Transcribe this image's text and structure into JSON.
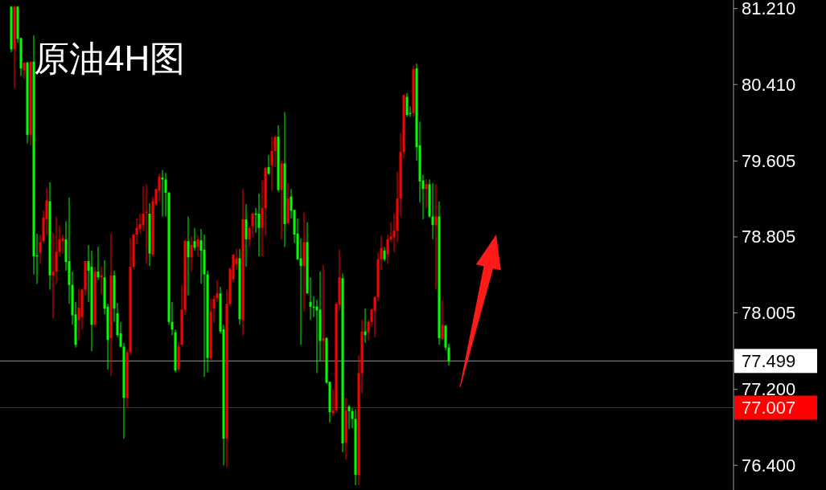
{
  "chart_data": {
    "type": "candlestick",
    "title": "原油4H图",
    "tick_labels": "y",
    "categories": [
      null,
      null,
      null,
      null,
      null,
      null,
      null,
      null,
      null,
      null,
      null,
      null,
      null,
      null,
      null,
      null,
      null,
      null,
      null,
      null,
      null,
      null,
      null,
      null,
      null,
      null,
      null,
      null,
      null,
      null,
      null,
      null,
      null,
      null,
      null,
      null,
      null,
      null,
      null,
      null,
      null,
      null,
      null,
      null,
      null,
      null,
      null,
      null,
      null,
      null,
      null,
      null,
      null,
      null,
      null,
      null,
      null,
      null,
      null,
      null,
      null,
      null,
      null,
      null,
      null,
      null,
      null,
      null,
      null,
      null,
      null,
      null,
      null,
      null,
      null,
      null,
      null,
      null,
      null,
      null,
      null,
      null,
      null,
      null,
      null,
      null,
      null,
      null,
      null,
      null,
      null,
      null,
      null,
      null,
      null,
      null,
      null,
      null,
      null,
      null,
      null,
      null,
      null,
      null,
      null,
      null,
      null,
      null,
      null,
      null,
      null,
      null,
      null,
      null,
      null,
      null,
      null,
      null,
      null,
      null,
      null,
      null,
      null,
      null,
      null,
      null,
      null,
      null,
      null,
      null,
      null,
      null,
      null,
      null,
      null,
      null,
      null,
      null,
      null,
      null,
      null,
      null,
      null,
      null,
      null,
      null,
      null,
      null,
      null,
      null,
      null,
      null,
      null,
      null,
      null,
      null,
      null,
      null,
      null,
      null,
      null,
      null,
      null,
      null,
      null,
      null,
      null,
      null,
      null,
      null,
      null,
      null,
      null,
      null,
      null,
      null,
      null,
      null,
      null,
      null,
      null,
      null,
      null,
      null,
      null,
      null,
      null,
      null,
      null,
      null,
      null,
      null,
      null,
      null,
      null,
      null,
      null,
      null,
      null,
      null,
      null,
      null,
      null,
      null,
      null,
      null,
      null,
      null,
      null,
      null,
      null,
      null,
      null,
      null,
      null,
      null,
      null,
      null,
      null,
      null,
      null,
      null,
      null,
      null,
      null,
      null,
      null,
      null
    ],
    "ylim": [
      76.14,
      81.3
    ],
    "yticks": [
      {
        "value": 81.21,
        "label": "81.210"
      },
      {
        "value": 80.41,
        "label": "80.410"
      },
      {
        "value": 79.605,
        "label": "79.605"
      },
      {
        "value": 78.805,
        "label": "78.805"
      },
      {
        "value": 78.005,
        "label": "78.005"
      },
      {
        "value": 77.2,
        "label": "77.200"
      },
      {
        "value": 76.4,
        "label": "76.400"
      }
    ],
    "ref_lines": [
      {
        "axis": "y",
        "value": 77.499,
        "label": "77.499",
        "color": "#c8c8c8"
      },
      {
        "axis": "y",
        "value": 77.007,
        "label": "77.007",
        "color": "#ff0000"
      }
    ],
    "ohlc": [
      null,
      null,
      null,
      [
        81.23,
        81.235,
        80.75,
        80.78
      ],
      [
        80.78,
        81.235,
        80.37,
        81.23
      ],
      [
        81.23,
        81.235,
        80.85,
        80.89
      ],
      [
        80.9,
        80.9,
        80.5,
        80.58
      ],
      [
        80.56,
        80.64,
        80.47,
        80.64
      ],
      [
        80.64,
        80.65,
        79.79,
        79.88
      ],
      [
        79.88,
        80.65,
        79.77,
        80.65
      ],
      [
        80.65,
        80.93,
        78.41,
        78.6
      ],
      [
        78.61,
        78.84,
        78.31,
        78.6
      ],
      [
        78.64,
        78.83,
        78.52,
        78.75
      ],
      [
        78.76,
        79.08,
        78.74,
        79.01
      ],
      [
        78.99,
        79.32,
        78.82,
        79.19
      ],
      [
        79.18,
        79.38,
        78.25,
        78.4
      ],
      [
        78.4,
        78.85,
        77.95,
        78.44
      ],
      [
        78.44,
        79.02,
        78.31,
        78.65
      ],
      [
        78.65,
        78.92,
        78.6,
        78.78
      ],
      [
        78.76,
        78.83,
        78.63,
        78.79
      ],
      [
        78.78,
        78.97,
        78.45,
        78.54
      ],
      [
        78.55,
        79.22,
        78.1,
        78.3
      ],
      [
        78.3,
        78.44,
        77.88,
        77.98
      ],
      [
        77.99,
        78.12,
        77.64,
        77.67
      ],
      [
        77.93,
        78.26,
        77.72,
        78.06
      ],
      [
        77.96,
        78.26,
        77.83,
        78.25
      ],
      [
        78.25,
        78.55,
        78.19,
        78.55
      ],
      [
        78.55,
        78.72,
        78.12,
        78.45
      ],
      [
        78.49,
        78.66,
        77.6,
        77.88
      ],
      [
        77.88,
        78.49,
        77.86,
        78.44
      ],
      [
        78.44,
        78.7,
        78.35,
        78.38
      ],
      [
        78.38,
        78.49,
        78.2,
        78.4
      ],
      [
        78.38,
        78.56,
        77.99,
        78.05
      ],
      [
        78.07,
        78.1,
        77.41,
        77.72
      ],
      [
        77.74,
        78.84,
        77.34,
        78.4
      ],
      [
        78.4,
        78.45,
        77.91,
        78.05
      ],
      [
        78.0,
        78.11,
        77.75,
        77.77
      ],
      [
        77.79,
        77.91,
        77.64,
        77.65
      ],
      [
        77.65,
        77.69,
        76.68,
        77.11
      ],
      [
        77.11,
        77.62,
        77.01,
        77.59
      ],
      [
        77.59,
        78.79,
        77.56,
        78.49
      ],
      [
        78.49,
        78.84,
        78.47,
        78.83
      ],
      [
        78.83,
        79.0,
        78.73,
        78.9
      ],
      [
        78.89,
        79.05,
        78.84,
        78.94
      ],
      [
        78.93,
        79.34,
        78.87,
        79.05
      ],
      [
        79.06,
        79.36,
        78.52,
        79.07
      ],
      [
        79.05,
        79.16,
        78.5,
        78.63
      ],
      [
        78.62,
        79.23,
        78.6,
        79.18
      ],
      [
        79.15,
        79.31,
        79.13,
        79.31
      ],
      [
        79.29,
        79.47,
        79.18,
        79.44
      ],
      [
        79.43,
        79.51,
        79.02,
        79.41
      ],
      [
        79.41,
        79.48,
        79.02,
        79.27
      ],
      [
        79.27,
        79.28,
        77.88,
        77.91
      ],
      [
        77.91,
        78.12,
        77.77,
        77.83
      ],
      [
        77.8,
        77.83,
        77.38,
        77.4
      ],
      [
        77.41,
        77.7,
        77.39,
        77.65
      ],
      [
        77.67,
        78.3,
        77.66,
        78.04
      ],
      [
        78.04,
        78.78,
        77.98,
        78.76
      ],
      [
        78.76,
        79.02,
        78.19,
        78.59
      ],
      [
        78.59,
        78.81,
        78.44,
        78.72
      ],
      [
        78.76,
        78.9,
        78.66,
        78.69
      ],
      [
        78.7,
        78.82,
        78.6,
        78.78
      ],
      [
        78.77,
        78.89,
        78.31,
        78.66
      ],
      [
        78.67,
        78.83,
        77.33,
        78.41
      ],
      [
        78.41,
        78.45,
        77.38,
        77.53
      ],
      [
        77.53,
        78.15,
        77.51,
        78.02
      ],
      [
        78.05,
        78.19,
        77.9,
        78.15
      ],
      [
        78.16,
        78.35,
        78.12,
        78.21
      ],
      [
        78.21,
        78.28,
        77.79,
        77.81
      ],
      [
        77.83,
        77.88,
        76.4,
        76.68
      ],
      [
        76.68,
        78.25,
        76.38,
        78.1
      ],
      [
        78.1,
        78.48,
        78.07,
        78.47
      ],
      [
        78.36,
        78.62,
        78.33,
        78.62
      ],
      [
        78.52,
        78.68,
        78.46,
        78.58
      ],
      [
        78.58,
        78.68,
        77.88,
        77.94
      ],
      [
        77.93,
        79.31,
        77.77,
        78.99
      ],
      [
        78.99,
        79.15,
        78.49,
        78.78
      ],
      [
        78.78,
        78.92,
        78.7,
        78.9
      ],
      [
        78.92,
        79.06,
        78.8,
        79.05
      ],
      [
        79.05,
        79.11,
        78.85,
        79.04
      ],
      [
        79.05,
        79.26,
        78.6,
        78.9
      ],
      [
        78.9,
        79.4,
        78.6,
        79.11
      ],
      [
        79.11,
        79.54,
        78.82,
        79.53
      ],
      [
        79.54,
        79.67,
        79.46,
        79.47
      ],
      [
        79.56,
        79.86,
        79.29,
        79.71
      ],
      [
        79.71,
        79.87,
        79.54,
        79.86
      ],
      [
        79.86,
        79.98,
        79.28,
        79.3
      ],
      [
        79.3,
        79.61,
        78.78,
        79.58
      ],
      [
        79.58,
        80.12,
        78.7,
        78.94
      ],
      [
        78.95,
        79.37,
        78.94,
        79.21
      ],
      [
        79.23,
        79.31,
        79.0,
        79.08
      ],
      [
        79.09,
        79.09,
        78.74,
        78.83
      ],
      [
        78.84,
        79.0,
        78.56,
        78.57
      ],
      [
        78.58,
        78.79,
        77.67,
        78.5
      ],
      [
        78.5,
        79.06,
        78.02,
        78.75
      ],
      [
        78.75,
        78.96,
        78.21,
        78.21
      ],
      [
        78.12,
        78.38,
        77.93,
        78.07
      ],
      [
        78.07,
        78.18,
        77.96,
        78.06
      ],
      [
        78.07,
        78.14,
        77.37,
        78.03
      ],
      [
        78.04,
        78.44,
        77.5,
        77.71
      ],
      [
        77.71,
        78.51,
        77.5,
        77.74
      ],
      [
        77.74,
        77.75,
        77.26,
        77.27
      ],
      [
        77.28,
        77.28,
        76.85,
        76.96
      ],
      [
        76.95,
        77.2,
        76.92,
        76.98
      ],
      [
        76.98,
        78.12,
        76.95,
        78.1
      ],
      [
        78.09,
        78.67,
        78.03,
        78.38
      ],
      [
        78.37,
        78.42,
        76.54,
        76.63
      ],
      [
        76.64,
        77.11,
        76.46,
        76.98
      ],
      [
        77.02,
        77.04,
        76.78,
        76.97
      ],
      [
        76.97,
        77.0,
        76.79,
        76.89
      ],
      [
        76.89,
        76.99,
        76.19,
        76.3
      ],
      [
        76.3,
        77.56,
        76.19,
        77.37
      ],
      [
        77.37,
        77.93,
        77.16,
        77.81
      ],
      [
        77.81,
        78.05,
        77.69,
        77.77
      ],
      [
        77.8,
        77.93,
        77.72,
        77.91
      ],
      [
        77.91,
        78.05,
        77.86,
        78.04
      ],
      [
        78.03,
        78.18,
        77.75,
        78.17
      ],
      [
        78.17,
        78.64,
        78.13,
        78.57
      ],
      [
        78.57,
        78.82,
        78.46,
        78.69
      ],
      [
        78.66,
        78.7,
        78.55,
        78.57
      ],
      [
        78.62,
        78.83,
        78.52,
        78.78
      ],
      [
        78.78,
        78.96,
        78.75,
        78.81
      ],
      [
        78.8,
        79.05,
        78.64,
        78.87
      ],
      [
        78.87,
        79.49,
        78.75,
        79.21
      ],
      [
        79.21,
        79.9,
        79.02,
        79.7
      ],
      [
        79.7,
        80.3,
        79.63,
        80.3
      ],
      [
        80.28,
        80.32,
        80.07,
        80.09
      ],
      [
        80.11,
        80.18,
        80.07,
        80.1
      ],
      [
        80.11,
        80.61,
        80.07,
        80.57
      ],
      [
        80.58,
        80.63,
        79.61,
        79.75
      ],
      [
        79.77,
        80.02,
        79.17,
        79.39
      ],
      [
        79.4,
        79.46,
        78.99,
        79.31
      ],
      [
        79.31,
        79.41,
        79.11,
        79.36
      ],
      [
        79.36,
        79.41,
        79.01,
        79.02
      ],
      [
        79.02,
        79.37,
        78.78,
        78.93
      ],
      [
        78.93,
        79.36,
        78.25,
        79.02
      ],
      [
        79.02,
        79.18,
        77.67,
        77.74
      ],
      [
        77.73,
        78.14,
        77.72,
        77.88
      ],
      [
        77.87,
        77.88,
        77.61,
        77.64
      ],
      [
        77.64,
        77.68,
        77.45,
        77.5
      ],
      null,
      null,
      null,
      null,
      null,
      null,
      null,
      null,
      null,
      null,
      null,
      null,
      null,
      null,
      null,
      null,
      null,
      null,
      null,
      null,
      null,
      null,
      null,
      null,
      null,
      null,
      null,
      null,
      null,
      null,
      null,
      null,
      null,
      null,
      null,
      null,
      null,
      null,
      null,
      null,
      null,
      null,
      null,
      null,
      null,
      null,
      null,
      null,
      null,
      null,
      null,
      null,
      null,
      null,
      null,
      null,
      null,
      null,
      null,
      null,
      null,
      null,
      null,
      null,
      null,
      null,
      null,
      null,
      null,
      null,
      null,
      null,
      null,
      null,
      null,
      null,
      null,
      null,
      null,
      null,
      null,
      null,
      null,
      null,
      null,
      null,
      null,
      null
    ]
  }
}
